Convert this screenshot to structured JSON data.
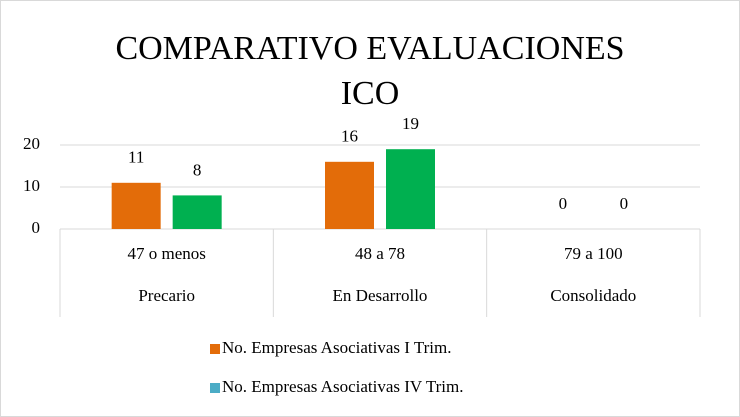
{
  "chart_data": {
    "type": "bar",
    "title": "COMPARATIVO EVALUACIONES ICO",
    "categories": [
      "47 o menos",
      "48 a 78",
      "79 a 100"
    ],
    "category_groups": [
      "Precario",
      "En Desarrollo",
      "Consolidado"
    ],
    "series": [
      {
        "name": "No. Empresas Asociativas I Trim.",
        "color": "#e36c09",
        "legend_color": "#e36c09",
        "values": [
          11,
          16,
          0
        ]
      },
      {
        "name": "No. Empresas Asociativas IV Trim.",
        "color": "#00b050",
        "legend_color": "#4bacc6",
        "values": [
          8,
          19,
          0
        ]
      }
    ],
    "ylim": [
      0,
      20
    ],
    "yticks": [
      0,
      10,
      20
    ],
    "grid": true,
    "legend": "bottom"
  }
}
